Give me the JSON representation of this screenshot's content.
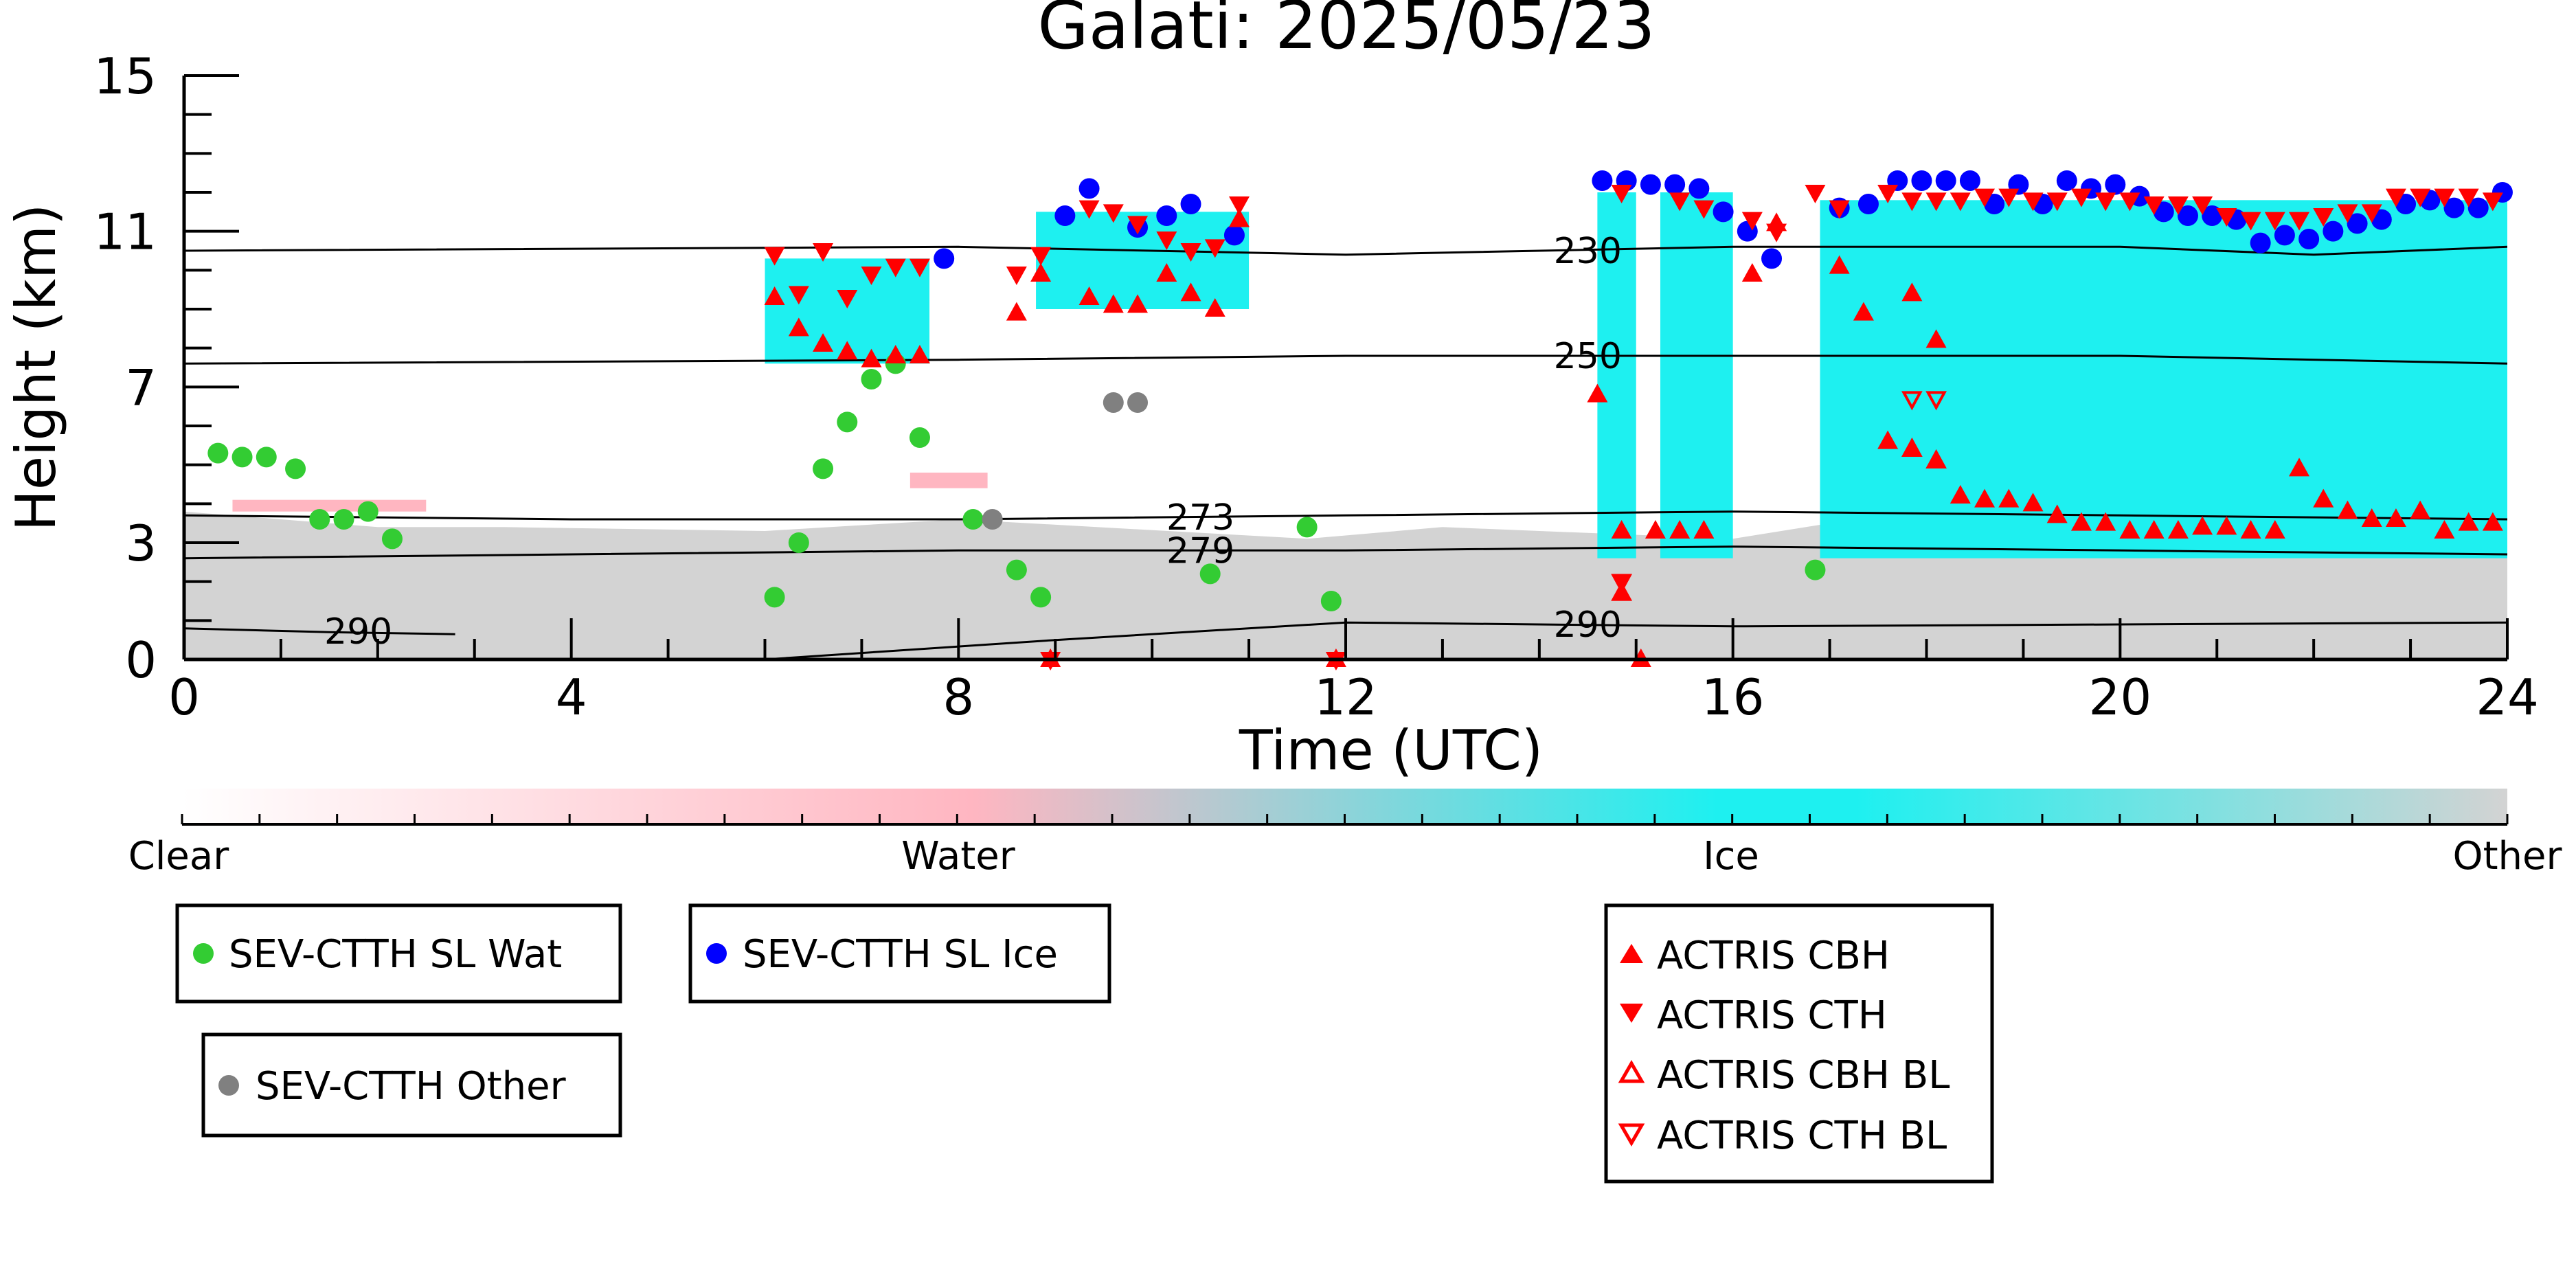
{
  "chart_data": {
    "type": "scatter",
    "title": "Galati: 2025/05/23",
    "xlabel": "Time (UTC)",
    "ylabel": "Height (km)",
    "xlim": [
      0,
      24
    ],
    "ylim": [
      0,
      15
    ],
    "xticks": [
      0,
      4,
      8,
      12,
      16,
      20,
      24
    ],
    "xtick_labels": [
      "0",
      "4",
      "8",
      "12",
      "16",
      "20",
      "24"
    ],
    "yticks": [
      0,
      3,
      7,
      11,
      15
    ],
    "ytick_labels": [
      "0",
      "3",
      "7",
      "11",
      "15"
    ],
    "colorbar": {
      "labels": [
        "Clear",
        "Water",
        "Ice",
        "Other"
      ],
      "colors": [
        "#ffffff",
        "#ffb6c1",
        "#1ef0f0",
        "#d3d3d3"
      ]
    },
    "background_layers": {
      "other_color": "#d3d3d3",
      "ice_color": "#1ef0f0",
      "water_color": "#ffb6c1",
      "other_boundary": [
        [
          0,
          3.8
        ],
        [
          2,
          3.4
        ],
        [
          3.3,
          3.4
        ],
        [
          6,
          3.3
        ],
        [
          8,
          3.6
        ],
        [
          11.6,
          3.1
        ],
        [
          13,
          3.4
        ],
        [
          16,
          3.1
        ],
        [
          17,
          3.5
        ],
        [
          20,
          3.5
        ],
        [
          22,
          3.2
        ],
        [
          24,
          3.6
        ]
      ],
      "ice_regions": [
        {
          "xmin": 6.0,
          "xmax": 7.7,
          "ymin": 7.6,
          "ymax": 10.3
        },
        {
          "xmin": 8.8,
          "xmax": 11.0,
          "ymin": 9.0,
          "ymax": 11.5
        },
        {
          "xmin": 14.6,
          "xmax": 15.0,
          "ymin": 2.6,
          "ymax": 12.0
        },
        {
          "xmin": 15.25,
          "xmax": 16.0,
          "ymin": 2.6,
          "ymax": 12.0
        },
        {
          "xmin": 16.9,
          "xmax": 24.0,
          "ymin": 2.6,
          "ymax": 11.8
        }
      ],
      "water_regions": [
        {
          "xmin": 0.5,
          "xmax": 2.5,
          "ymin": 3.8,
          "ymax": 4.1
        },
        {
          "xmin": 7.5,
          "xmax": 8.3,
          "ymin": 4.4,
          "ymax": 4.8
        }
      ]
    },
    "isotherms": [
      {
        "label": "230",
        "x": [
          0,
          8,
          12,
          16,
          20,
          22,
          24
        ],
        "y": [
          10.5,
          10.6,
          10.4,
          10.6,
          10.6,
          10.4,
          10.6
        ]
      },
      {
        "label": "250",
        "x": [
          0,
          8,
          12,
          16,
          20,
          24
        ],
        "y": [
          7.6,
          7.7,
          7.8,
          7.8,
          7.8,
          7.6
        ]
      },
      {
        "label": "273",
        "x": [
          0,
          4,
          8,
          12,
          16,
          20,
          24
        ],
        "y": [
          3.7,
          3.6,
          3.6,
          3.7,
          3.8,
          3.7,
          3.6
        ]
      },
      {
        "label": "279",
        "x": [
          0,
          4,
          8,
          12,
          16,
          20,
          24
        ],
        "y": [
          2.6,
          2.7,
          2.8,
          2.8,
          2.9,
          2.8,
          2.7
        ]
      },
      {
        "label": "290",
        "x": [
          0,
          1.5,
          2.8
        ],
        "y": [
          0.8,
          0.7,
          0.65
        ]
      },
      {
        "label": "290",
        "x": [
          6,
          9,
          12,
          16,
          20,
          24
        ],
        "y": [
          0,
          0.5,
          0.95,
          0.85,
          0.9,
          0.95
        ]
      }
    ],
    "series": [
      {
        "name": "SEV-CTTH SL Wat",
        "marker": "circle",
        "color": "#33cc33",
        "points": [
          [
            0.35,
            5.3
          ],
          [
            0.6,
            5.2
          ],
          [
            0.85,
            5.2
          ],
          [
            1.15,
            4.9
          ],
          [
            1.4,
            3.6
          ],
          [
            1.65,
            3.6
          ],
          [
            1.9,
            3.8
          ],
          [
            2.15,
            3.1
          ],
          [
            6.1,
            1.6
          ],
          [
            6.35,
            3.0
          ],
          [
            6.6,
            4.9
          ],
          [
            6.85,
            6.1
          ],
          [
            7.1,
            7.2
          ],
          [
            7.35,
            7.6
          ],
          [
            7.6,
            5.7
          ],
          [
            8.15,
            3.6
          ],
          [
            8.6,
            2.3
          ],
          [
            8.85,
            1.6
          ],
          [
            10.6,
            2.2
          ],
          [
            11.6,
            3.4
          ],
          [
            11.85,
            1.5
          ],
          [
            16.85,
            2.3
          ]
        ]
      },
      {
        "name": "SEV-CTTH SL Ice",
        "marker": "circle",
        "color": "#0000ff",
        "points": [
          [
            7.85,
            10.3
          ],
          [
            9.1,
            11.4
          ],
          [
            9.35,
            12.1
          ],
          [
            9.85,
            11.1
          ],
          [
            10.15,
            11.4
          ],
          [
            10.4,
            11.7
          ],
          [
            10.85,
            10.9
          ],
          [
            14.65,
            12.3
          ],
          [
            14.9,
            12.3
          ],
          [
            15.15,
            12.2
          ],
          [
            15.4,
            12.2
          ],
          [
            15.65,
            12.1
          ],
          [
            15.9,
            11.5
          ],
          [
            16.15,
            11.0
          ],
          [
            16.4,
            10.3
          ],
          [
            17.1,
            11.6
          ],
          [
            17.4,
            11.7
          ],
          [
            17.7,
            12.3
          ],
          [
            17.95,
            12.3
          ],
          [
            18.2,
            12.3
          ],
          [
            18.45,
            12.3
          ],
          [
            18.7,
            11.7
          ],
          [
            18.95,
            12.2
          ],
          [
            19.2,
            11.7
          ],
          [
            19.45,
            12.3
          ],
          [
            19.7,
            12.1
          ],
          [
            19.95,
            12.2
          ],
          [
            20.2,
            11.9
          ],
          [
            20.45,
            11.5
          ],
          [
            20.7,
            11.4
          ],
          [
            20.95,
            11.4
          ],
          [
            21.2,
            11.3
          ],
          [
            21.45,
            10.7
          ],
          [
            21.7,
            10.9
          ],
          [
            21.95,
            10.8
          ],
          [
            22.2,
            11.0
          ],
          [
            22.45,
            11.2
          ],
          [
            22.7,
            11.3
          ],
          [
            22.95,
            11.7
          ],
          [
            23.2,
            11.8
          ],
          [
            23.45,
            11.6
          ],
          [
            23.7,
            11.6
          ],
          [
            23.95,
            12.0
          ]
        ]
      },
      {
        "name": "SEV-CTTH Other",
        "marker": "circle",
        "color": "#808080",
        "points": [
          [
            8.35,
            3.6
          ],
          [
            9.6,
            6.6
          ],
          [
            9.85,
            6.6
          ]
        ]
      },
      {
        "name": "ACTRIS CBH",
        "marker": "triangle-up",
        "color": "#ff0000",
        "filled": true,
        "points": [
          [
            6.1,
            9.3
          ],
          [
            6.35,
            8.5
          ],
          [
            6.6,
            8.1
          ],
          [
            6.85,
            7.9
          ],
          [
            7.1,
            7.7
          ],
          [
            7.35,
            7.8
          ],
          [
            7.6,
            7.8
          ],
          [
            8.6,
            8.9
          ],
          [
            8.85,
            9.9
          ],
          [
            9.35,
            9.3
          ],
          [
            9.6,
            9.1
          ],
          [
            9.85,
            9.1
          ],
          [
            10.15,
            9.9
          ],
          [
            10.4,
            9.4
          ],
          [
            10.65,
            9.0
          ],
          [
            10.9,
            11.3
          ],
          [
            14.6,
            6.8
          ],
          [
            14.85,
            1.7
          ],
          [
            14.85,
            3.3
          ],
          [
            15.05,
            0
          ],
          [
            15.2,
            3.3
          ],
          [
            15.45,
            3.3
          ],
          [
            15.7,
            3.3
          ],
          [
            16.2,
            9.9
          ],
          [
            16.45,
            11.2
          ],
          [
            17.1,
            10.1
          ],
          [
            17.35,
            8.9
          ],
          [
            17.6,
            5.6
          ],
          [
            17.85,
            9.4
          ],
          [
            17.85,
            5.4
          ],
          [
            18.1,
            5.1
          ],
          [
            18.1,
            8.2
          ],
          [
            18.35,
            4.2
          ],
          [
            18.6,
            4.1
          ],
          [
            18.85,
            4.1
          ],
          [
            19.1,
            4.0
          ],
          [
            19.35,
            3.7
          ],
          [
            19.6,
            3.5
          ],
          [
            19.85,
            3.5
          ],
          [
            20.1,
            3.3
          ],
          [
            20.35,
            3.3
          ],
          [
            20.6,
            3.3
          ],
          [
            20.85,
            3.4
          ],
          [
            21.1,
            3.4
          ],
          [
            21.35,
            3.3
          ],
          [
            21.6,
            3.3
          ],
          [
            21.85,
            4.9
          ],
          [
            22.1,
            4.1
          ],
          [
            22.35,
            3.8
          ],
          [
            22.6,
            3.6
          ],
          [
            22.85,
            3.6
          ],
          [
            23.1,
            3.8
          ],
          [
            23.35,
            3.3
          ],
          [
            23.6,
            3.5
          ],
          [
            23.85,
            3.5
          ],
          [
            8.95,
            0
          ],
          [
            11.9,
            0
          ]
        ]
      },
      {
        "name": "ACTRIS CTH",
        "marker": "triangle-down",
        "color": "#ff0000",
        "filled": true,
        "points": [
          [
            6.1,
            10.4
          ],
          [
            6.35,
            9.4
          ],
          [
            6.6,
            10.5
          ],
          [
            6.85,
            9.3
          ],
          [
            7.1,
            9.9
          ],
          [
            7.35,
            10.1
          ],
          [
            7.6,
            10.1
          ],
          [
            8.6,
            9.9
          ],
          [
            8.85,
            10.4
          ],
          [
            9.35,
            11.6
          ],
          [
            9.6,
            11.5
          ],
          [
            9.85,
            11.2
          ],
          [
            10.15,
            10.8
          ],
          [
            10.4,
            10.5
          ],
          [
            10.65,
            10.6
          ],
          [
            10.9,
            11.7
          ],
          [
            14.85,
            12.0
          ],
          [
            14.85,
            2.0
          ],
          [
            15.45,
            11.8
          ],
          [
            15.7,
            11.6
          ],
          [
            16.2,
            11.3
          ],
          [
            16.45,
            11.0
          ],
          [
            16.85,
            12.0
          ],
          [
            17.1,
            11.6
          ],
          [
            17.6,
            12.0
          ],
          [
            17.85,
            11.8
          ],
          [
            18.1,
            11.8
          ],
          [
            18.35,
            11.8
          ],
          [
            18.6,
            11.9
          ],
          [
            18.85,
            11.9
          ],
          [
            19.1,
            11.8
          ],
          [
            19.35,
            11.8
          ],
          [
            19.6,
            11.9
          ],
          [
            19.85,
            11.8
          ],
          [
            20.1,
            11.8
          ],
          [
            20.35,
            11.7
          ],
          [
            20.6,
            11.7
          ],
          [
            20.85,
            11.7
          ],
          [
            21.1,
            11.4
          ],
          [
            21.35,
            11.3
          ],
          [
            21.6,
            11.3
          ],
          [
            21.85,
            11.3
          ],
          [
            22.1,
            11.4
          ],
          [
            22.35,
            11.5
          ],
          [
            22.6,
            11.5
          ],
          [
            22.85,
            11.9
          ],
          [
            23.1,
            11.9
          ],
          [
            23.35,
            11.9
          ],
          [
            23.6,
            11.9
          ],
          [
            23.85,
            11.8
          ],
          [
            8.95,
            0
          ],
          [
            11.9,
            0
          ]
        ]
      },
      {
        "name": "ACTRIS CBH BL",
        "marker": "triangle-up-open",
        "color": "#ff0000",
        "points": [
          [
            14.85,
            1.7
          ],
          [
            17.85,
            5.4
          ],
          [
            18.1,
            5.1
          ]
        ]
      },
      {
        "name": "ACTRIS CTH BL",
        "marker": "triangle-down-open",
        "color": "#ff0000",
        "points": [
          [
            14.85,
            2.0
          ],
          [
            17.85,
            6.7
          ],
          [
            18.1,
            6.7
          ]
        ]
      }
    ],
    "legend": [
      {
        "label": "SEV-CTTH SL Wat"
      },
      {
        "label": "SEV-CTTH SL Ice"
      },
      {
        "label": "SEV-CTTH Other"
      },
      {
        "label": "ACTRIS CBH"
      },
      {
        "label": "ACTRIS CTH"
      },
      {
        "label": "ACTRIS CBH BL"
      },
      {
        "label": "ACTRIS CTH BL"
      }
    ]
  }
}
